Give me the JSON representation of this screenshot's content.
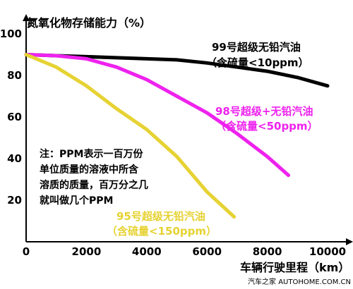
{
  "chart_data": {
    "type": "line",
    "ylabel": "氮氧化物存储能力（%）",
    "xlabel": "车辆行驶里程（km）",
    "xlim": [
      0,
      10000
    ],
    "ylim": [
      10,
      100
    ],
    "x_ticks": [
      "0",
      "2000",
      "4000",
      "6000",
      "8000",
      "10000"
    ],
    "y_ticks": [
      "100",
      "80",
      "60",
      "40",
      "20"
    ],
    "grid": false,
    "series": [
      {
        "label_line1": "99号超级无铅汽油",
        "label_line2": "（含硫量<10ppm）",
        "color": "#000000",
        "x": [
          0,
          1000,
          2000,
          3000,
          4000,
          5000,
          6000,
          7000,
          8000,
          9000,
          10000
        ],
        "y": [
          90,
          89.5,
          89,
          88.5,
          88,
          87.5,
          86,
          84,
          82,
          79,
          75
        ]
      },
      {
        "label_line1": "98号超级+无铅汽油",
        "label_line2": "（含硫量<50ppm）",
        "color": "#ee22ee",
        "x": [
          0,
          1000,
          2000,
          3000,
          4000,
          5000,
          6000,
          7000,
          8000,
          8700
        ],
        "y": [
          90,
          89.5,
          88,
          84,
          78,
          70,
          62,
          52,
          41,
          32
        ]
      },
      {
        "label_line1": "95号超级无铅汽油",
        "label_line2": "（含硫量<150ppm）",
        "color": "#e6d232",
        "x": [
          0,
          1000,
          2000,
          3000,
          4000,
          5000,
          6000,
          6900
        ],
        "y": [
          90,
          84,
          75,
          64,
          54,
          41,
          24,
          12
        ]
      }
    ],
    "note_lines": [
      "注：PPM表示一百万份",
      "单位质量的溶液中所含",
      "溶质的质量，百万分之几",
      "就叫做几个PPM"
    ],
    "watermark": "汽车之家 AUTOHOME.COM.CN"
  }
}
